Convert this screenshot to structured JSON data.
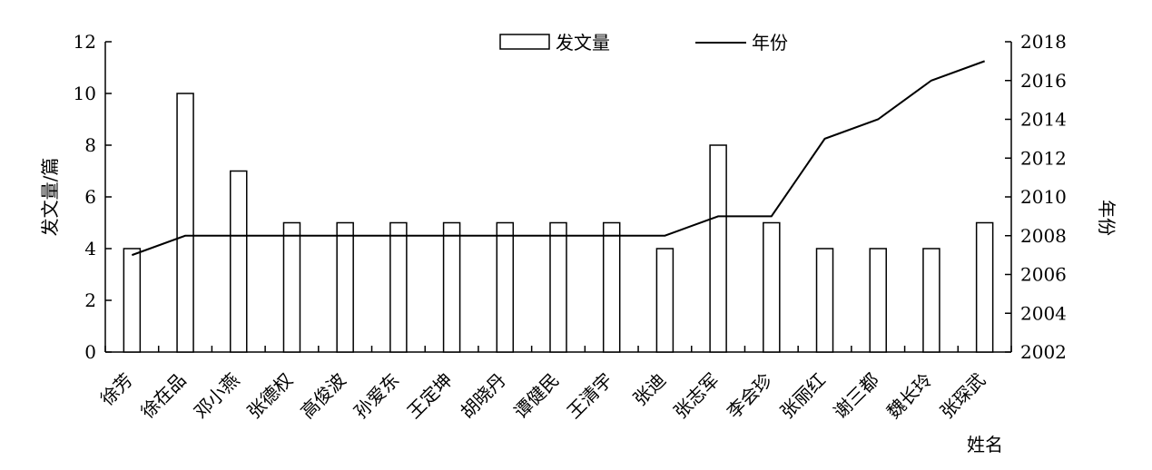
{
  "chart_data": {
    "type": "bar",
    "xlabel": "姓名",
    "ylabel_left": "发文量/篇",
    "ylabel_right": "年份",
    "categories": [
      "徐芳",
      "徐在品",
      "邓小燕",
      "张德权",
      "高俊波",
      "孙爱东",
      "王定坤",
      "胡晓丹",
      "谭健民",
      "王清宇",
      "张迪",
      "张志军",
      "李会珍",
      "张丽红",
      "谢三都",
      "魏长玲",
      "张琛武"
    ],
    "series": [
      {
        "name": "发文量",
        "type": "bar",
        "axis": "left",
        "values": [
          4,
          10,
          7,
          5,
          5,
          5,
          5,
          5,
          5,
          5,
          4,
          8,
          5,
          4,
          4,
          4,
          5
        ]
      },
      {
        "name": "年份",
        "type": "line",
        "axis": "right",
        "values": [
          2007,
          2008,
          2008,
          2008,
          2008,
          2008,
          2008,
          2008,
          2008,
          2008,
          2008,
          2009,
          2009,
          2013,
          2014,
          2016,
          2017
        ]
      }
    ],
    "ylim_left": [
      0,
      12
    ],
    "yticks_left": [
      "0",
      "2",
      "4",
      "6",
      "8",
      "10",
      "12"
    ],
    "ylim_right": [
      2002,
      2018
    ],
    "yticks_right": [
      "2002",
      "2004",
      "2006",
      "2008",
      "2010",
      "2012",
      "2014",
      "2016",
      "2018"
    ],
    "legend_position": "top-center",
    "grid": false
  }
}
